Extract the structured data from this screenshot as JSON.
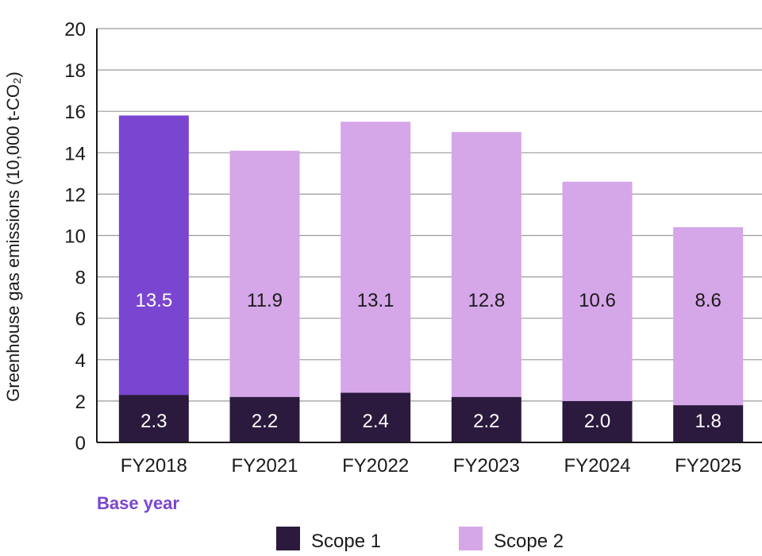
{
  "chart_data": {
    "type": "bar",
    "stacked": true,
    "categories": [
      "FY2018",
      "FY2021",
      "FY2022",
      "FY2023",
      "FY2024",
      "FY2025"
    ],
    "series": [
      {
        "name": "Scope 1",
        "values": [
          2.3,
          2.2,
          2.4,
          2.2,
          2.0,
          1.8
        ],
        "color": "#2b1a3e"
      },
      {
        "name": "Scope 2",
        "values": [
          13.5,
          11.9,
          13.1,
          12.8,
          10.6,
          8.6
        ],
        "color": "#d5a6e8"
      }
    ],
    "highlight": {
      "category": "FY2018",
      "scope2_color": "#7a45d0",
      "note": "Base year",
      "note_color": "#7a45d0"
    },
    "title": "",
    "xlabel": "",
    "ylabel": "Greenhouse gas emissions (10,000 t-CO₂)",
    "ylim": [
      0,
      20
    ],
    "yticks": [
      0,
      2,
      4,
      6,
      8,
      10,
      12,
      14,
      16,
      18,
      20
    ],
    "grid": true,
    "legend": "bottom-center"
  }
}
